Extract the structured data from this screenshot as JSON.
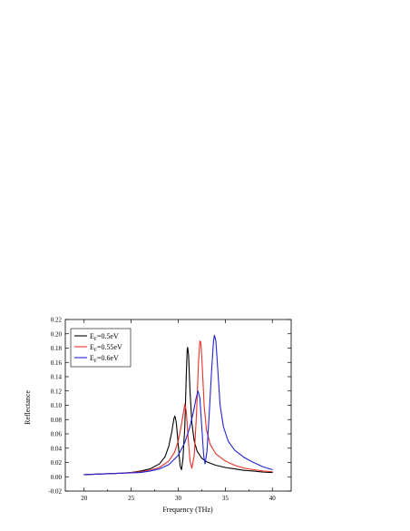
{
  "chart_data": {
    "type": "line",
    "xlabel": "Frequency (THz)",
    "ylabel": "Reflectance",
    "xlim": [
      18,
      42
    ],
    "ylim": [
      -0.02,
      0.22
    ],
    "xticks": [
      20,
      25,
      30,
      35,
      40
    ],
    "yticks": [
      -0.02,
      0.0,
      0.02,
      0.04,
      0.06,
      0.08,
      0.1,
      0.12,
      0.14,
      0.16,
      0.18,
      0.2,
      0.22
    ],
    "ytick_labels": [
      "-0.02",
      "0.00",
      "0.02",
      "0.04",
      "0.06",
      "0.08",
      "0.10",
      "0.12",
      "0.14",
      "0.16",
      "0.18",
      "0.20",
      "0.22"
    ],
    "grid": false,
    "legend_position": "top-left",
    "series": [
      {
        "name_base": "E",
        "name_sub": "F",
        "name_rest": "=0.5eV",
        "color": "#000000",
        "points": [
          [
            20.0,
            0.003
          ],
          [
            22.0,
            0.004
          ],
          [
            24.0,
            0.005
          ],
          [
            25.0,
            0.006
          ],
          [
            26.0,
            0.008
          ],
          [
            27.0,
            0.011
          ],
          [
            28.0,
            0.018
          ],
          [
            28.6,
            0.028
          ],
          [
            29.0,
            0.043
          ],
          [
            29.3,
            0.062
          ],
          [
            29.55,
            0.082
          ],
          [
            29.65,
            0.085
          ],
          [
            29.8,
            0.075
          ],
          [
            30.0,
            0.045
          ],
          [
            30.2,
            0.015
          ],
          [
            30.35,
            0.01
          ],
          [
            30.5,
            0.025
          ],
          [
            30.7,
            0.07
          ],
          [
            30.85,
            0.14
          ],
          [
            30.95,
            0.178
          ],
          [
            31.0,
            0.181
          ],
          [
            31.1,
            0.17
          ],
          [
            31.25,
            0.12
          ],
          [
            31.45,
            0.075
          ],
          [
            31.7,
            0.05
          ],
          [
            32.0,
            0.036
          ],
          [
            32.5,
            0.026
          ],
          [
            33.0,
            0.021
          ],
          [
            34.0,
            0.016
          ],
          [
            35.0,
            0.013
          ],
          [
            36.0,
            0.011
          ],
          [
            37.0,
            0.009
          ],
          [
            38.0,
            0.008
          ],
          [
            39.0,
            0.0065
          ],
          [
            40.0,
            0.006
          ]
        ]
      },
      {
        "name_base": "E",
        "name_sub": "F",
        "name_rest": "=0.55eV",
        "color": "#e8332a",
        "points": [
          [
            20.0,
            0.003
          ],
          [
            22.0,
            0.004
          ],
          [
            24.0,
            0.005
          ],
          [
            26.0,
            0.007
          ],
          [
            27.0,
            0.009
          ],
          [
            28.0,
            0.013
          ],
          [
            29.0,
            0.022
          ],
          [
            29.6,
            0.034
          ],
          [
            30.0,
            0.05
          ],
          [
            30.3,
            0.07
          ],
          [
            30.55,
            0.09
          ],
          [
            30.7,
            0.102
          ],
          [
            30.85,
            0.092
          ],
          [
            31.05,
            0.055
          ],
          [
            31.25,
            0.022
          ],
          [
            31.45,
            0.012
          ],
          [
            31.7,
            0.03
          ],
          [
            31.95,
            0.09
          ],
          [
            32.15,
            0.16
          ],
          [
            32.3,
            0.19
          ],
          [
            32.4,
            0.188
          ],
          [
            32.55,
            0.155
          ],
          [
            32.75,
            0.1
          ],
          [
            33.0,
            0.065
          ],
          [
            33.4,
            0.045
          ],
          [
            34.0,
            0.032
          ],
          [
            35.0,
            0.022
          ],
          [
            36.0,
            0.016
          ],
          [
            37.0,
            0.012
          ],
          [
            38.0,
            0.01
          ],
          [
            39.0,
            0.008
          ],
          [
            40.0,
            0.007
          ]
        ]
      },
      {
        "name_base": "E",
        "name_sub": "F",
        "name_rest": "=0.6eV",
        "color": "#2323d6",
        "points": [
          [
            20.0,
            0.003
          ],
          [
            22.0,
            0.004
          ],
          [
            24.0,
            0.005
          ],
          [
            26.0,
            0.006
          ],
          [
            27.0,
            0.008
          ],
          [
            28.0,
            0.011
          ],
          [
            29.0,
            0.017
          ],
          [
            30.0,
            0.03
          ],
          [
            30.7,
            0.048
          ],
          [
            31.2,
            0.068
          ],
          [
            31.6,
            0.09
          ],
          [
            31.9,
            0.11
          ],
          [
            32.1,
            0.12
          ],
          [
            32.3,
            0.11
          ],
          [
            32.5,
            0.07
          ],
          [
            32.7,
            0.03
          ],
          [
            32.85,
            0.018
          ],
          [
            33.05,
            0.035
          ],
          [
            33.3,
            0.09
          ],
          [
            33.55,
            0.15
          ],
          [
            33.75,
            0.19
          ],
          [
            33.85,
            0.198
          ],
          [
            34.0,
            0.19
          ],
          [
            34.2,
            0.15
          ],
          [
            34.45,
            0.1
          ],
          [
            34.8,
            0.07
          ],
          [
            35.3,
            0.05
          ],
          [
            36.0,
            0.037
          ],
          [
            37.0,
            0.027
          ],
          [
            38.0,
            0.02
          ],
          [
            39.0,
            0.014
          ],
          [
            40.0,
            0.01
          ]
        ]
      }
    ]
  }
}
